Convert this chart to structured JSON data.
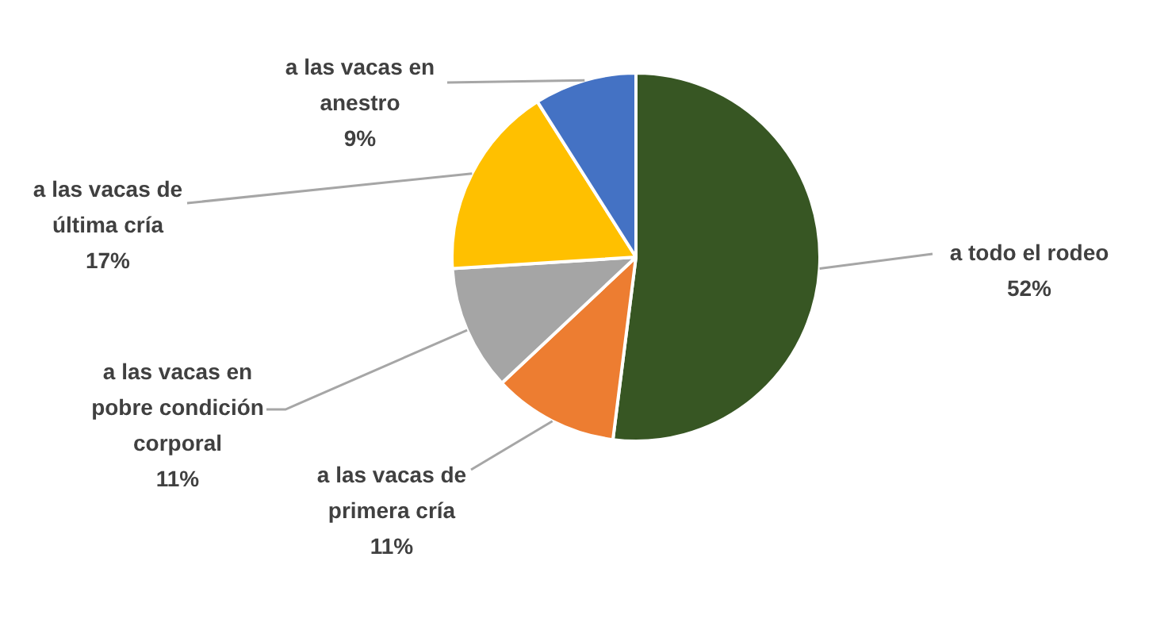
{
  "chart_data": {
    "type": "pie",
    "categories": [
      "a todo el rodeo",
      "a las vacas de primera cría",
      "a las vacas en pobre condición corporal",
      "a las vacas de última cría",
      "a las vacas en anestro"
    ],
    "values": [
      52,
      11,
      11,
      17,
      9
    ],
    "value_labels": [
      "52%",
      "11%",
      "11%",
      "17%",
      "9%"
    ],
    "colors": [
      "#375623",
      "#ed7d31",
      "#a5a5a5",
      "#ffc000",
      "#4472c4"
    ],
    "legend": false
  }
}
